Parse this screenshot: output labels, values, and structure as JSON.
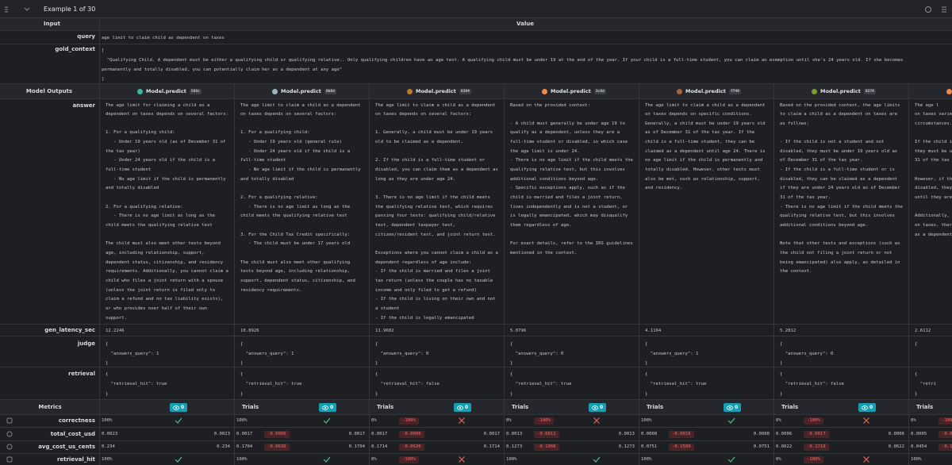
{
  "header": {
    "title": "Example 1 of 30"
  },
  "table": {
    "columns": [
      "Input",
      "Value"
    ],
    "rows": [
      {
        "label": "query",
        "value": "age limit to claim child as dependent on taxes"
      },
      {
        "label": "gold_context",
        "value": "[\n  \"Qualifying Child. A dependent must be either a qualifying child or qualifying relative.. Only qualifying children have an age test. A qualifying child must be under 19 at the end of the year. If your child is a full-time student, you can claim an exemption until she's 24 years old. If she becomes\npermanently and totally disabled, you can potentially claim her as a dependent at any age\"\n]"
      }
    ]
  },
  "model_outputs": {
    "label": "Model Outputs",
    "models": [
      {
        "name": "Model.predict",
        "id": "588c",
        "color": "#3fb59e"
      },
      {
        "name": "Model.predict",
        "id": "0b8d",
        "color": "#9fb3c2"
      },
      {
        "name": "Model.predict",
        "id": "8394",
        "color": "#c27a26"
      },
      {
        "name": "Model.predict",
        "id": "3c6d",
        "color": "#ee8a4e"
      },
      {
        "name": "Model.predict",
        "id": "f749",
        "color": "#a2663c"
      },
      {
        "name": "Model.predict",
        "id": "8276",
        "color": "#7d9a2c"
      },
      {
        "color": "#f08a4a"
      }
    ],
    "rows": [
      {
        "label": "answer",
        "values": [
          "The age limit for claiming a child as a\ndependent on taxes depends on several factors:\n\n1. For a qualifying child:\n   - Under 19 years old (as of December 31 of\nthe tax year)\n   - Under 24 years old if the child is a\nfull-time student\n   - No age limit if the child is permanently\nand totally disabled\n\n2. For a qualifying relative:\n   - There is no age limit as long as the\nchild meets the qualifying relative test\n\nThe child must also meet other tests beyond\nage, including relationship, support,\ndependent status, citizenship, and residency\nrequirements. Additionally, you cannot claim a\nchild who files a joint return with a spouse\n(unless the joint return is filed only to\nclaim a refund and no tax liability exists),\nor who provides over half of their own\nsupport.",
          "The age limit to claim a child as a dependent\non taxes depends on several factors:\n\n1. For a qualifying child:\n   - Under 19 years old (general rule)\n   - Under 24 years old if the child is a\nfull-time student\n   - No age limit if the child is permanently\nand totally disabled\n\n2. For a qualifying relative:\n   - There is no age limit as long as the\nchild meets the qualifying relative test\n\n3. For the Child Tax Credit specifically:\n   - The child must be under 17 years old\n\nThe child must also meet other qualifying\ntests beyond age, including relationship,\nsupport, dependent status, citizenship, and\nresidency requirements.",
          "The age limit to claim a child as a dependent\non taxes depends on several factors:\n\n1. Generally, a child must be under 19 years\nold to be claimed as a dependent.\n\n2. If the child is a full-time student or\ndisabled, you can claim them as a dependent as\nlong as they are under age 24.\n\n3. There is no age limit if the child meets\nthe qualifying relative test, which requires\npassing four tests: qualifying child/relative\ntest, dependent taxpayer test,\ncitizen/resident test, and joint return test.\n\nExceptions where you cannot claim a child as a\ndependent regardless of age include:\n- If the child is married and files a joint\ntax return (unless the couple has no taxable\nincome and only filed to get a refund)\n- If the child is living on their own and not\na student\n- If the child is legally emancipated",
          "Based on the provided context:\n\n- A child must generally be under age 19 to\nqualify as a dependent, unless they are a\nfull-time student or disabled, in which case\nthe age limit is under 24.\n- There is no age limit if the child meets the\nqualifying relative test, but this involves\nadditional conditions beyond age.\n- Specific exceptions apply, such as if the\nchild is married and files a joint return,\nlives independently and is not a student, or\nis legally emancipated, which may disqualify\nthem regardless of age.\n\nFor exact details, refer to the IRS guidelines\nmentioned in the context.",
          "The age limit to claim a child as a dependent\non taxes depends on specific conditions.\nGenerally, a child must be under 19 years old\nas of December 31 of the tax year. If the\nchild is a full-time student, they can be\nclaimed as a dependent until age 24. There is\nno age limit if the child is permanently and\ntotally disabled. However, other tests must\nalso be met, such as relationship, support,\nand residency.",
          "Based on the provided context, the age limits\nto claim a child as a dependent on taxes are\nas follows:\n\n- If the child is not a student and not\ndisabled, they must be under 19 years old as\nof December 31 of the tax year.\n- If the child is a full-time student or is\ndisabled, they can be claimed as a dependent\nif they are under 24 years old as of December\n31 of the tax year.\n- There is no age limit if the child meets the\nqualifying relative test, but this involves\nadditional conditions beyond age.\n\nNote that other tests and exceptions (such as\nthe child not filing a joint return or not\nbeing emancipated) also apply, as detailed in\nthe context.",
          "The age l\non taxes varies\ncircumstances.\n\nIf the child is\nthey must be un\n31 of the tax\n\nHowever, if the\ndisabled, they\nuntil they are\n\nAdditionally, i\non taxes, there\nas a dependent."
        ]
      },
      {
        "label": "gen_latency_sec",
        "values": [
          "12.2246",
          "10.8926",
          "11.9602",
          "5.0796",
          "4.1164",
          "5.2812",
          "2.6112"
        ]
      },
      {
        "label": "judge",
        "values": [
          "{\n  \"answers_query\": 1\n}",
          "{\n  \"answers_query\": 1\n}",
          "{\n  \"answers_query\": 0\n}",
          "{\n  \"answers_query\": 0\n}",
          "{\n  \"answers_query\": 1\n}",
          "{\n  \"answers_query\": 0\n}",
          "{"
        ]
      },
      {
        "label": "retrieval",
        "values": [
          "{\n  \"retrieval_hit\": true\n}",
          "{\n  \"retrieval_hit\": true\n}",
          "{\n  \"retrieval_hit\": false\n}",
          "{\n  \"retrieval_hit\": true\n}",
          "{\n  \"retrieval_hit\": true\n}",
          "{\n  \"retrieval_hit\": false\n}",
          "{\n  \"retri\n}"
        ]
      }
    ]
  },
  "metrics": {
    "label": "Metrics",
    "columns": [
      {
        "badge": "0"
      },
      {
        "trials": "Trials",
        "badge": "0"
      },
      {
        "trials": "Trials",
        "badge": "0"
      },
      {
        "trials": "Trials",
        "badge": "0"
      },
      {
        "trials": "Trials",
        "badge": "0"
      },
      {
        "trials": "Trials",
        "badge": "0"
      },
      {
        "trials": "Trials"
      }
    ],
    "rows": [
      {
        "label": "correctness",
        "cells": [
          {
            "value": "100%",
            "icon": "check"
          },
          {
            "value": "100%",
            "icon": "check"
          },
          {
            "value": "0%",
            "delta": "-100%",
            "icon": "x"
          },
          {
            "value": "0%",
            "delta": "-100%",
            "icon": "x"
          },
          {
            "value": "100%",
            "icon": "check"
          },
          {
            "value": "0%",
            "delta": "-100%",
            "icon": "x"
          },
          {
            "value": "0%",
            "delta": "-100%"
          }
        ]
      },
      {
        "label": "total_cost_usd",
        "cells": [
          {
            "value": "0.0023",
            "right": "0.0023"
          },
          {
            "value": "0.0017",
            "delta": "-0.0006",
            "right": "0.0017"
          },
          {
            "value": "0.0017",
            "delta": "-0.0006",
            "right": "0.0017"
          },
          {
            "value": "0.0013",
            "delta": "-0.0011",
            "right": "0.0013"
          },
          {
            "value": "0.0008",
            "delta": "-0.0016",
            "right": "0.0008"
          },
          {
            "value": "0.0006",
            "delta": "-0.0017",
            "right": "0.0006"
          },
          {
            "value": "0.0005",
            "delta": "-0.0019"
          }
        ]
      },
      {
        "label": "avg_cost_us_cents",
        "cells": [
          {
            "value": "0.234",
            "right": "0.234"
          },
          {
            "value": "0.1704",
            "delta": "-0.0636",
            "right": "0.1704"
          },
          {
            "value": "0.1714",
            "delta": "-0.0626",
            "right": "0.1714"
          },
          {
            "value": "0.1273",
            "delta": "-0.1066",
            "right": "0.1273"
          },
          {
            "value": "0.0751",
            "delta": "-0.1589",
            "right": "0.0751"
          },
          {
            "value": "0.0622",
            "delta": "-0.1718",
            "right": "0.0622"
          },
          {
            "value": "0.0454",
            "delta": "-0.1885"
          }
        ]
      },
      {
        "label": "retrieval_hit",
        "cells": [
          {
            "value": "100%",
            "icon": "check"
          },
          {
            "value": "100%",
            "icon": "check"
          },
          {
            "value": "0%",
            "delta": "-100%",
            "icon": "x"
          },
          {
            "value": "100%",
            "icon": "check"
          },
          {
            "value": "100%",
            "icon": "check"
          },
          {
            "value": "0%",
            "delta": "-100%",
            "icon": "x"
          },
          {
            "value": "100%"
          }
        ]
      }
    ]
  }
}
